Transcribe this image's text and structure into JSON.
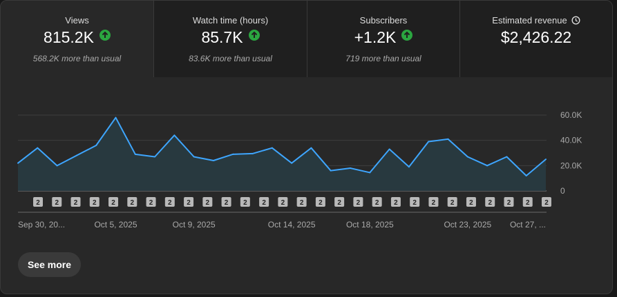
{
  "metrics": [
    {
      "label": "Views",
      "value": "815.2K",
      "note": "568.2K more than usual",
      "trend": "up"
    },
    {
      "label": "Watch time (hours)",
      "value": "85.7K",
      "note": "83.6K more than usual",
      "trend": "up"
    },
    {
      "label": "Subscribers",
      "value": "+1.2K",
      "note": "719 more than usual",
      "trend": "up"
    },
    {
      "label": "Estimated revenue",
      "value": "$2,426.22",
      "note": "",
      "trend": "none"
    }
  ],
  "chart_data": {
    "type": "area",
    "metric": "Views",
    "ylim": [
      0,
      60000
    ],
    "y_ticks": [
      0,
      20000,
      40000,
      60000
    ],
    "y_tick_labels": [
      "0",
      "20.0K",
      "40.0K",
      "60.0K"
    ],
    "x_tick_labels": [
      "Sep 30, 20...",
      "Oct 5, 2025",
      "Oct 9, 2025",
      "Oct 14, 2025",
      "Oct 18, 2025",
      "Oct 23, 2025",
      "Oct 27, ..."
    ],
    "x_tick_indices": [
      0,
      5,
      9,
      14,
      18,
      23,
      27
    ],
    "values": [
      22000,
      34000,
      20000,
      28000,
      36000,
      58000,
      29000,
      27000,
      44000,
      27000,
      24000,
      29000,
      29500,
      34000,
      22000,
      34000,
      16000,
      18000,
      14500,
      33000,
      19000,
      39000,
      41000,
      27000,
      20000,
      27000,
      12000,
      25000
    ],
    "markers": [
      "2",
      "2",
      "2",
      "2",
      "2",
      "2",
      "2",
      "2",
      "2",
      "2",
      "2",
      "2",
      "2",
      "2",
      "2",
      "2",
      "2",
      "2",
      "2",
      "2",
      "2",
      "2",
      "2",
      "2",
      "2",
      "2",
      "2",
      "2"
    ],
    "grid": true,
    "line_color": "#3ea6ff",
    "fill_color": "#28393f"
  },
  "actions": {
    "see_more": "See more"
  },
  "colors": {
    "up": "#2ba640"
  }
}
